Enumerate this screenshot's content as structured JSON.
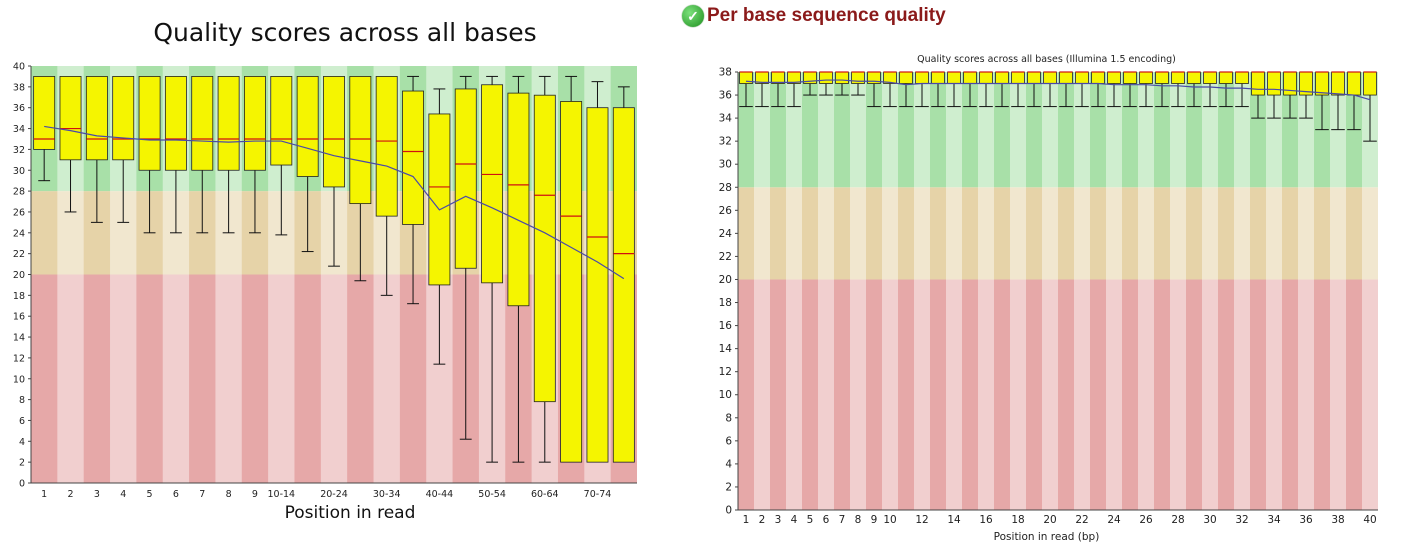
{
  "left": {
    "title": "Quality scores across all bases",
    "xlabel": "Position in read"
  },
  "right": {
    "heading": "Per base sequence quality",
    "status_icon": "check-circle-icon",
    "status_color": "#2aa52a",
    "subtitle": "Quality scores across all bases (Illumina 1.5 encoding)",
    "xlabel": "Position in read (bp)"
  },
  "chart_data": [
    {
      "type": "box",
      "title": "Quality scores across all bases",
      "xlabel": "Position in read",
      "ylabel": "",
      "ylim": [
        0,
        40
      ],
      "yticks": [
        0,
        2,
        4,
        6,
        8,
        10,
        12,
        14,
        16,
        18,
        20,
        22,
        24,
        26,
        28,
        30,
        32,
        34,
        36,
        38,
        40
      ],
      "zones": [
        {
          "from": 0,
          "to": 20,
          "color": "#e6a8a8"
        },
        {
          "from": 20,
          "to": 28,
          "color": "#e6d3a8"
        },
        {
          "from": 28,
          "to": 40,
          "color": "#a8e0a8"
        }
      ],
      "categories": [
        "1",
        "2",
        "3",
        "4",
        "5",
        "6",
        "7",
        "8",
        "9",
        "10-14",
        "15-19",
        "20-24",
        "25-29",
        "30-34",
        "35-39",
        "40-44",
        "45-49",
        "50-54",
        "55-59",
        "60-64",
        "65-69",
        "70-74",
        "75-79"
      ],
      "tick_labels": [
        "1",
        "2",
        "3",
        "4",
        "5",
        "6",
        "7",
        "8",
        "9",
        "10-14",
        "20-24",
        "30-34",
        "40-44",
        "50-54",
        "60-64",
        "70-74"
      ],
      "tick_label_categories": [
        "1",
        "2",
        "3",
        "4",
        "5",
        "6",
        "7",
        "8",
        "9",
        "10-14",
        "20-24",
        "30-34",
        "40-44",
        "50-54",
        "60-64",
        "70-74"
      ],
      "boxes": [
        {
          "low": 29,
          "q1": 32,
          "median": 33,
          "q3": 39,
          "high": 39
        },
        {
          "low": 26,
          "q1": 31,
          "median": 34,
          "q3": 39,
          "high": 39
        },
        {
          "low": 25,
          "q1": 31,
          "median": 33,
          "q3": 39,
          "high": 39
        },
        {
          "low": 25,
          "q1": 31,
          "median": 33,
          "q3": 39,
          "high": 39
        },
        {
          "low": 24,
          "q1": 30,
          "median": 33,
          "q3": 39,
          "high": 39
        },
        {
          "low": 24,
          "q1": 30,
          "median": 33,
          "q3": 39,
          "high": 39
        },
        {
          "low": 24,
          "q1": 30,
          "median": 33,
          "q3": 39,
          "high": 39
        },
        {
          "low": 24,
          "q1": 30,
          "median": 33,
          "q3": 39,
          "high": 39
        },
        {
          "low": 24,
          "q1": 30,
          "median": 33,
          "q3": 39,
          "high": 39
        },
        {
          "low": 23.8,
          "q1": 30.5,
          "median": 33,
          "q3": 39,
          "high": 39
        },
        {
          "low": 22.2,
          "q1": 29.4,
          "median": 33,
          "q3": 39,
          "high": 39
        },
        {
          "low": 20.8,
          "q1": 28.4,
          "median": 33,
          "q3": 39,
          "high": 39
        },
        {
          "low": 19.4,
          "q1": 26.8,
          "median": 33,
          "q3": 39,
          "high": 39
        },
        {
          "low": 18,
          "q1": 25.6,
          "median": 32.8,
          "q3": 39,
          "high": 39
        },
        {
          "low": 17.2,
          "q1": 24.8,
          "median": 31.8,
          "q3": 37.6,
          "high": 39
        },
        {
          "low": 11.4,
          "q1": 19,
          "median": 28.4,
          "q3": 35.4,
          "high": 37.8
        },
        {
          "low": 4.2,
          "q1": 20.6,
          "median": 30.6,
          "q3": 37.8,
          "high": 39
        },
        {
          "low": 2,
          "q1": 19.2,
          "median": 29.6,
          "q3": 38.2,
          "high": 39
        },
        {
          "low": 2,
          "q1": 17,
          "median": 28.6,
          "q3": 37.4,
          "high": 39
        },
        {
          "low": 2,
          "q1": 7.8,
          "median": 27.6,
          "q3": 37.2,
          "high": 39
        },
        {
          "low": 2,
          "q1": 2,
          "median": 25.6,
          "q3": 36.6,
          "high": 39
        },
        {
          "low": 2,
          "q1": 2,
          "median": 23.6,
          "q3": 36,
          "high": 38.5
        },
        {
          "low": 2,
          "q1": 2,
          "median": 22,
          "q3": 36,
          "high": 38
        }
      ],
      "mean": [
        34.2,
        33.8,
        33.3,
        33.1,
        32.9,
        32.9,
        32.8,
        32.7,
        32.8,
        32.8,
        32.1,
        31.4,
        30.9,
        30.4,
        29.4,
        26.2,
        27.5,
        26.4,
        25.2,
        24,
        22.6,
        21.2,
        19.6
      ],
      "colors": {
        "box": "#f5f500",
        "median": "#d01010",
        "mean": "#4a4aa8",
        "whisker": "#111111",
        "band_light": "#ffffff"
      }
    },
    {
      "type": "box",
      "title": "Quality scores across all bases (Illumina 1.5 encoding)",
      "xlabel": "Position in read (bp)",
      "ylabel": "",
      "ylim": [
        0,
        38
      ],
      "yticks": [
        0,
        2,
        4,
        6,
        8,
        10,
        12,
        14,
        16,
        18,
        20,
        22,
        24,
        26,
        28,
        30,
        32,
        34,
        36,
        38
      ],
      "zones": [
        {
          "from": 0,
          "to": 20,
          "color": "#e6a8a8"
        },
        {
          "from": 20,
          "to": 28,
          "color": "#e6d3a8"
        },
        {
          "from": 28,
          "to": 38,
          "color": "#a8e0a8"
        }
      ],
      "categories": [
        "1",
        "2",
        "3",
        "4",
        "5",
        "6",
        "7",
        "8",
        "9",
        "10",
        "11",
        "12",
        "13",
        "14",
        "15",
        "16",
        "17",
        "18",
        "19",
        "20",
        "21",
        "22",
        "23",
        "24",
        "25",
        "26",
        "27",
        "28",
        "29",
        "30",
        "31",
        "32",
        "33",
        "34",
        "35",
        "36",
        "37",
        "38",
        "39",
        "40"
      ],
      "tick_labels": [
        "1",
        "2",
        "3",
        "4",
        "5",
        "6",
        "7",
        "8",
        "9",
        "10",
        "12",
        "14",
        "16",
        "18",
        "20",
        "22",
        "24",
        "26",
        "28",
        "30",
        "32",
        "34",
        "36",
        "38",
        "40"
      ],
      "tick_label_categories": [
        "1",
        "2",
        "3",
        "4",
        "5",
        "6",
        "7",
        "8",
        "9",
        "10",
        "12",
        "14",
        "16",
        "18",
        "20",
        "22",
        "24",
        "26",
        "28",
        "30",
        "32",
        "34",
        "36",
        "38",
        "40"
      ],
      "boxes": [
        {
          "low": 35,
          "q1": 37,
          "median": 38,
          "q3": 38,
          "high": 38
        },
        {
          "low": 35,
          "q1": 37,
          "median": 38,
          "q3": 38,
          "high": 38
        },
        {
          "low": 35,
          "q1": 37,
          "median": 38,
          "q3": 38,
          "high": 38
        },
        {
          "low": 35,
          "q1": 37,
          "median": 38,
          "q3": 38,
          "high": 38
        },
        {
          "low": 36,
          "q1": 37,
          "median": 38,
          "q3": 38,
          "high": 38
        },
        {
          "low": 36,
          "q1": 37,
          "median": 38,
          "q3": 38,
          "high": 38
        },
        {
          "low": 36,
          "q1": 37,
          "median": 38,
          "q3": 38,
          "high": 38
        },
        {
          "low": 36,
          "q1": 37,
          "median": 38,
          "q3": 38,
          "high": 38
        },
        {
          "low": 35,
          "q1": 37,
          "median": 38,
          "q3": 38,
          "high": 38
        },
        {
          "low": 35,
          "q1": 37,
          "median": 38,
          "q3": 38,
          "high": 38
        },
        {
          "low": 35,
          "q1": 37,
          "median": 38,
          "q3": 38,
          "high": 38
        },
        {
          "low": 35,
          "q1": 37,
          "median": 38,
          "q3": 38,
          "high": 38
        },
        {
          "low": 35,
          "q1": 37,
          "median": 38,
          "q3": 38,
          "high": 38
        },
        {
          "low": 35,
          "q1": 37,
          "median": 38,
          "q3": 38,
          "high": 38
        },
        {
          "low": 35,
          "q1": 37,
          "median": 38,
          "q3": 38,
          "high": 38
        },
        {
          "low": 35,
          "q1": 37,
          "median": 38,
          "q3": 38,
          "high": 38
        },
        {
          "low": 35,
          "q1": 37,
          "median": 38,
          "q3": 38,
          "high": 38
        },
        {
          "low": 35,
          "q1": 37,
          "median": 38,
          "q3": 38,
          "high": 38
        },
        {
          "low": 35,
          "q1": 37,
          "median": 38,
          "q3": 38,
          "high": 38
        },
        {
          "low": 35,
          "q1": 37,
          "median": 38,
          "q3": 38,
          "high": 38
        },
        {
          "low": 35,
          "q1": 37,
          "median": 38,
          "q3": 38,
          "high": 38
        },
        {
          "low": 35,
          "q1": 37,
          "median": 38,
          "q3": 38,
          "high": 38
        },
        {
          "low": 35,
          "q1": 37,
          "median": 38,
          "q3": 38,
          "high": 38
        },
        {
          "low": 35,
          "q1": 37,
          "median": 38,
          "q3": 38,
          "high": 38
        },
        {
          "low": 35,
          "q1": 37,
          "median": 38,
          "q3": 38,
          "high": 38
        },
        {
          "low": 35,
          "q1": 37,
          "median": 38,
          "q3": 38,
          "high": 38
        },
        {
          "low": 35,
          "q1": 37,
          "median": 38,
          "q3": 38,
          "high": 38
        },
        {
          "low": 35,
          "q1": 37,
          "median": 38,
          "q3": 38,
          "high": 38
        },
        {
          "low": 35,
          "q1": 37,
          "median": 38,
          "q3": 38,
          "high": 38
        },
        {
          "low": 35,
          "q1": 37,
          "median": 38,
          "q3": 38,
          "high": 38
        },
        {
          "low": 35,
          "q1": 37,
          "median": 38,
          "q3": 38,
          "high": 38
        },
        {
          "low": 35,
          "q1": 37,
          "median": 38,
          "q3": 38,
          "high": 38
        },
        {
          "low": 34,
          "q1": 36,
          "median": 38,
          "q3": 38,
          "high": 38
        },
        {
          "low": 34,
          "q1": 36,
          "median": 38,
          "q3": 38,
          "high": 38
        },
        {
          "low": 34,
          "q1": 36,
          "median": 38,
          "q3": 38,
          "high": 38
        },
        {
          "low": 34,
          "q1": 36,
          "median": 38,
          "q3": 38,
          "high": 38
        },
        {
          "low": 33,
          "q1": 36,
          "median": 38,
          "q3": 38,
          "high": 38
        },
        {
          "low": 33,
          "q1": 36,
          "median": 38,
          "q3": 38,
          "high": 38
        },
        {
          "low": 33,
          "q1": 36,
          "median": 38,
          "q3": 38,
          "high": 38
        },
        {
          "low": 32,
          "q1": 36,
          "median": 38,
          "q3": 38,
          "high": 38
        }
      ],
      "mean": [
        37.2,
        37.1,
        37.1,
        37.1,
        37.2,
        37.3,
        37.3,
        37.2,
        37.2,
        37.1,
        36.9,
        37.0,
        37.0,
        37.0,
        37.0,
        37.0,
        37.0,
        37.0,
        37.0,
        37.0,
        37.0,
        37.0,
        37.0,
        36.9,
        36.9,
        36.9,
        36.8,
        36.8,
        36.7,
        36.7,
        36.6,
        36.6,
        36.5,
        36.5,
        36.4,
        36.3,
        36.2,
        36.1,
        36.0,
        35.6
      ],
      "colors": {
        "box": "#f5f500",
        "median": "#d01010",
        "mean": "#4a4aa8",
        "whisker": "#111111",
        "band_light": "#ffffff"
      }
    }
  ]
}
